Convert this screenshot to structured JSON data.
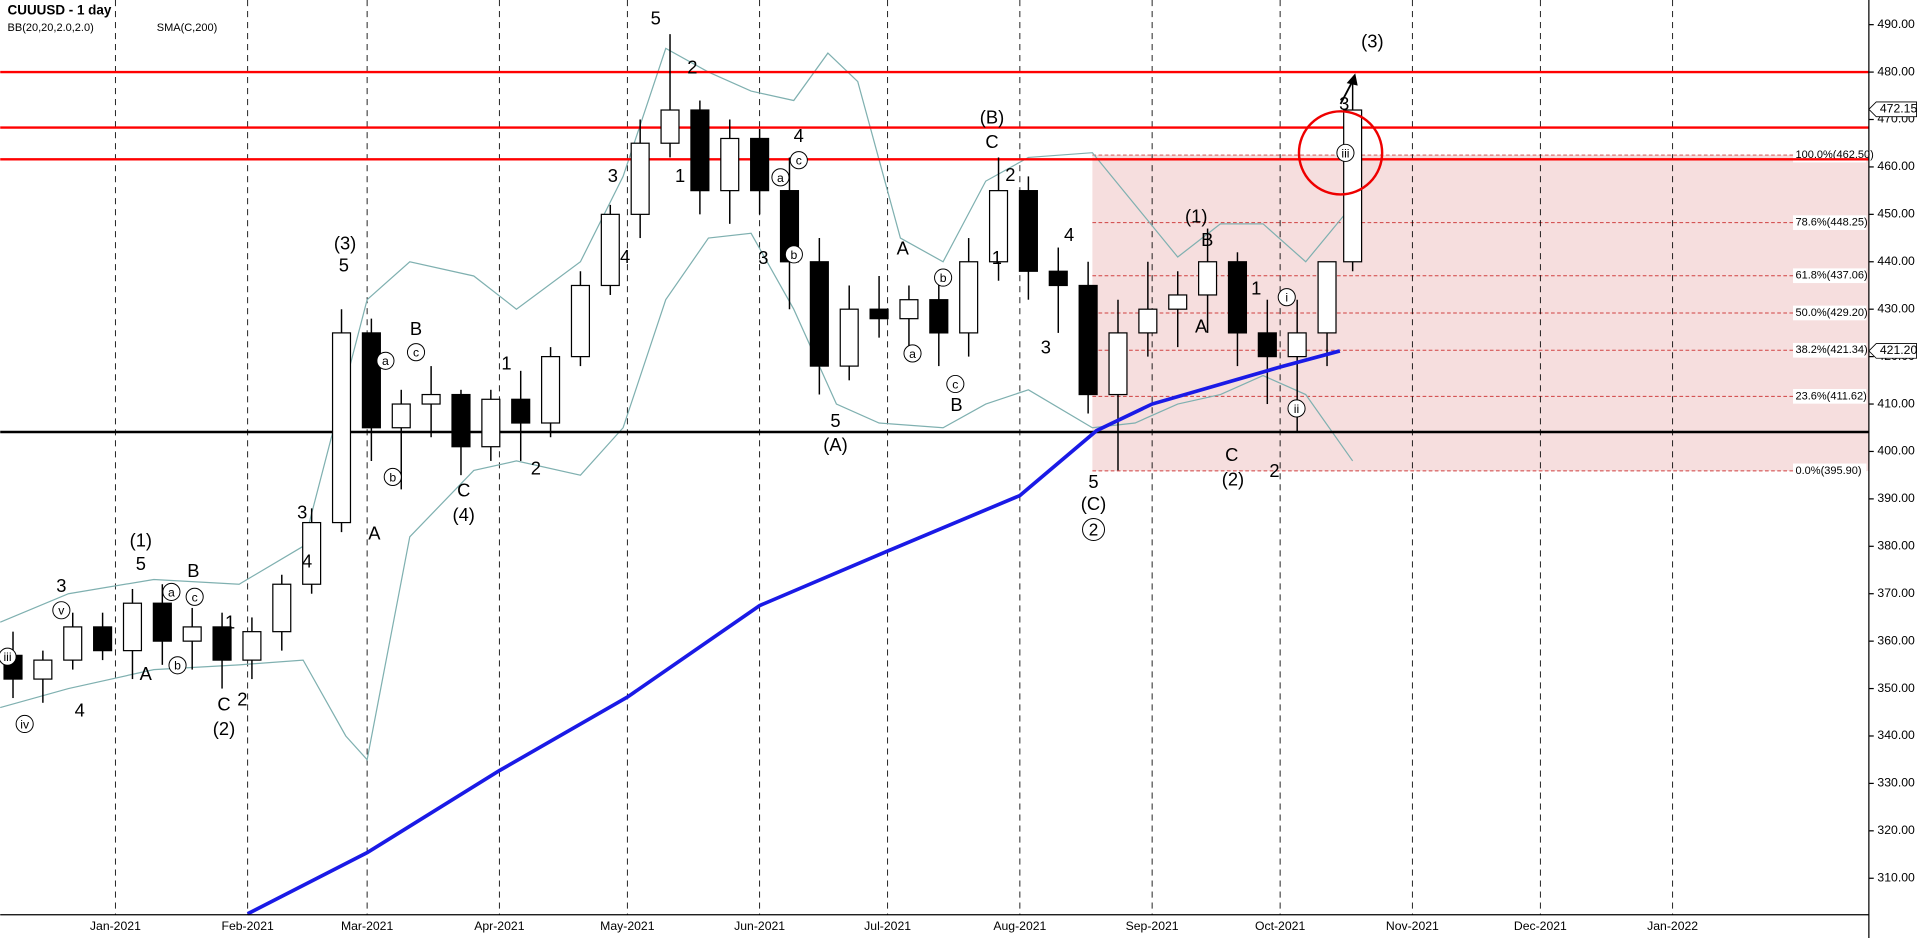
{
  "chart_data": {
    "type": "candlestick",
    "title": "CUUUSD - 1 day",
    "indicators": [
      {
        "name": "BB(20,20,2.0,2.0)",
        "color": "#5a9a9a"
      },
      {
        "name": "SMA(C,200)",
        "color": "#1a1ae6"
      }
    ],
    "xlim": [
      4,
      442
    ],
    "xticks": [
      {
        "value": 31,
        "label": "Jan-2021"
      },
      {
        "value": 62,
        "label": "Feb-2021"
      },
      {
        "value": 90,
        "label": "Mar-2021"
      },
      {
        "value": 121,
        "label": "Apr-2021"
      },
      {
        "value": 151,
        "label": "May-2021"
      },
      {
        "value": 182,
        "label": "Jun-2021"
      },
      {
        "value": 212,
        "label": "Jul-2021"
      },
      {
        "value": 243,
        "label": "Aug-2021"
      },
      {
        "value": 274,
        "label": "Sep-2021"
      },
      {
        "value": 304,
        "label": "Oct-2021"
      },
      {
        "value": 335,
        "label": "Nov-2021"
      },
      {
        "value": 365,
        "label": "Dec-2021"
      },
      {
        "value": 396,
        "label": "Jan-2022"
      }
    ],
    "ylim": [
      302.3,
      495.2
    ],
    "yticks": [
      {
        "value": 310,
        "label": "310.00"
      },
      {
        "value": 320,
        "label": "320.00"
      },
      {
        "value": 330,
        "label": "330.00"
      },
      {
        "value": 340,
        "label": "340.00"
      },
      {
        "value": 350,
        "label": "350.00"
      },
      {
        "value": 360,
        "label": "360.00"
      },
      {
        "value": 370,
        "label": "370.00"
      },
      {
        "value": 380,
        "label": "380.00"
      },
      {
        "value": 390,
        "label": "390.00"
      },
      {
        "value": 400,
        "label": "400.00"
      },
      {
        "value": 410,
        "label": "410.00"
      },
      {
        "value": 420,
        "label": "420.00"
      },
      {
        "value": 430,
        "label": "430.00"
      },
      {
        "value": 440,
        "label": "440.00"
      },
      {
        "value": 450,
        "label": "450.00"
      },
      {
        "value": 460,
        "label": "460.00"
      },
      {
        "value": 470,
        "label": "470.00"
      },
      {
        "value": 480,
        "label": "480.00"
      },
      {
        "value": 490,
        "label": "490.00"
      }
    ],
    "grid": true,
    "candles": {
      "x": [
        7,
        14,
        21,
        28,
        35,
        42,
        49,
        56,
        63,
        70,
        77,
        84,
        91,
        98,
        105,
        112,
        119,
        126,
        133,
        140,
        147,
        154,
        161,
        168,
        175,
        182,
        189,
        196,
        203,
        210,
        217,
        224,
        231,
        238,
        245,
        252,
        259,
        266,
        273,
        280,
        287,
        294,
        301,
        308,
        315,
        321
      ],
      "open": [
        357,
        352,
        356,
        363,
        358,
        368,
        360,
        363,
        356,
        362,
        372,
        385,
        425,
        405,
        410,
        412,
        401,
        411,
        406,
        420,
        435,
        450,
        465,
        472,
        455,
        466,
        455,
        440,
        418,
        430,
        428,
        432,
        425,
        440,
        455,
        438,
        435,
        412,
        425,
        430,
        433,
        440,
        425,
        420,
        425,
        440
      ],
      "high": [
        362,
        358,
        366,
        366,
        371,
        372,
        367,
        366,
        365,
        374,
        388,
        430,
        428,
        413,
        418,
        413,
        413,
        417,
        422,
        438,
        452,
        470,
        488,
        474,
        470,
        468,
        462,
        445,
        435,
        437,
        435,
        438,
        445,
        462,
        458,
        443,
        440,
        432,
        440,
        438,
        447,
        442,
        432,
        432,
        440,
        478
      ],
      "low": [
        348,
        347,
        354,
        356,
        352,
        355,
        354,
        350,
        352,
        358,
        370,
        383,
        398,
        392,
        403,
        395,
        398,
        398,
        403,
        418,
        433,
        445,
        462,
        450,
        448,
        450,
        430,
        412,
        415,
        424,
        420,
        418,
        420,
        436,
        432,
        425,
        408,
        396,
        420,
        422,
        425,
        418,
        410,
        404,
        418,
        438
      ],
      "close": [
        352,
        356,
        363,
        358,
        368,
        360,
        363,
        356,
        362,
        372,
        385,
        425,
        405,
        410,
        412,
        401,
        411,
        406,
        420,
        435,
        450,
        465,
        472,
        455,
        466,
        455,
        440,
        418,
        430,
        428,
        432,
        425,
        440,
        455,
        438,
        435,
        412,
        425,
        430,
        433,
        440,
        425,
        420,
        425,
        440,
        472
      ]
    },
    "series": [
      {
        "name": "SMA(C,200)",
        "color": "#1a1ae6",
        "x": [
          62,
          90,
          121,
          151,
          182,
          212,
          243,
          261,
          274,
          304,
          318
        ],
        "values": [
          302.5,
          315.4,
          332.7,
          348.2,
          367.5,
          379,
          390.7,
          404.4,
          410,
          417.8,
          421.2
        ]
      },
      {
        "name": "BB upper",
        "color": "#7fb0b0",
        "x": [
          4,
          20,
          40,
          60,
          75,
          90,
          100,
          115,
          125,
          140,
          150,
          160,
          170,
          180,
          190,
          198,
          205,
          215,
          225,
          235,
          245,
          260,
          270,
          280,
          290,
          300,
          310,
          321
        ],
        "values": [
          364,
          370,
          373,
          372,
          380,
          432,
          440,
          437,
          430,
          440,
          458,
          485,
          480,
          476,
          474,
          484,
          478,
          445,
          440,
          457,
          462,
          463,
          452,
          441,
          448,
          448,
          440,
          452
        ]
      },
      {
        "name": "BB lower",
        "color": "#7fb0b0",
        "x": [
          4,
          20,
          40,
          60,
          75,
          85,
          90,
          100,
          115,
          125,
          140,
          150,
          160,
          170,
          180,
          190,
          200,
          210,
          225,
          235,
          245,
          260,
          270,
          280,
          290,
          300,
          310,
          321
        ],
        "values": [
          346,
          350,
          354,
          355,
          356,
          340,
          335,
          382,
          396,
          398,
          395,
          405,
          432,
          445,
          446,
          430,
          410,
          406,
          405,
          410,
          413,
          405,
          406,
          410,
          412,
          416,
          412,
          398
        ]
      }
    ],
    "levels": [
      {
        "value": 480,
        "color": "#ff0000"
      },
      {
        "value": 468.3,
        "color": "#ff0000"
      },
      {
        "value": 461.6,
        "color": "#ff0000"
      },
      {
        "value": 404.1,
        "color": "#000000"
      }
    ],
    "fib_start": 260,
    "fibs": [
      {
        "value": 462.5,
        "label": "100.0%(462.50)"
      },
      {
        "value": 448.25,
        "label": "78.6%(448.25)"
      },
      {
        "value": 437.06,
        "label": "61.8%(437.06)"
      },
      {
        "value": 429.2,
        "label": "50.0%(429.20)"
      },
      {
        "value": 421.34,
        "label": "38.2%(421.34)"
      },
      {
        "value": 411.62,
        "label": "23.6%(411.62)"
      },
      {
        "value": 395.9,
        "label": "0.0%(395.90)"
      }
    ],
    "price_tags": [
      472.15,
      {
        "value": 421.2,
        "label": "421.20"
      }
    ],
    "wave_labels": [
      "(3)",
      "5",
      "(1)",
      "5",
      "3",
      "B",
      "A",
      "4",
      "C",
      "2",
      "(2)",
      "1",
      "3",
      "4",
      "A",
      "B",
      "C",
      "(4)",
      "1",
      "2",
      "3",
      "4",
      "5",
      "2",
      "1",
      "3",
      "4",
      "A",
      "5",
      "(A)",
      "B",
      "1",
      "2",
      "C",
      "(B)",
      "4",
      "3",
      "5",
      "(C)",
      "(1)",
      "B",
      "A",
      "1",
      "C",
      "(2)",
      "2",
      "3",
      "(3)"
    ],
    "circled_labels": [
      "iii",
      "iv",
      "v",
      "a",
      "b",
      "c",
      "a",
      "b",
      "c",
      "a",
      "b",
      "c",
      "a",
      "b",
      "c",
      "i",
      "ii",
      "iii",
      "2"
    ]
  }
}
